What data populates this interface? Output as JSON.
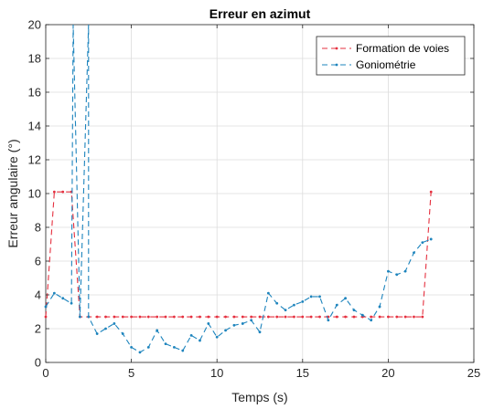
{
  "chart_data": {
    "type": "line",
    "title": "Erreur en azimut",
    "xlabel": "Temps (s)",
    "ylabel": "Erreur angulaire (°)",
    "xlim": [
      0,
      25
    ],
    "ylim": [
      0,
      20
    ],
    "xticks": [
      0,
      5,
      10,
      15,
      20,
      25
    ],
    "yticks": [
      0,
      2,
      4,
      6,
      8,
      10,
      12,
      14,
      16,
      18,
      20
    ],
    "grid": true,
    "legend_position": "top-right",
    "series": [
      {
        "name": "Formation de voies",
        "color": "#e5303f",
        "x": [
          0,
          0.5,
          1.0,
          1.5,
          2.0,
          2.5,
          3.0,
          3.5,
          4.0,
          4.5,
          5.0,
          5.5,
          6.0,
          6.5,
          7.0,
          7.5,
          8.0,
          8.5,
          9.0,
          9.5,
          10.0,
          10.5,
          11.0,
          11.5,
          12.0,
          12.5,
          13.0,
          13.5,
          14.0,
          14.5,
          15.0,
          15.5,
          16.0,
          16.5,
          17.0,
          17.5,
          18.0,
          18.5,
          19.0,
          19.5,
          20.0,
          20.5,
          21.0,
          21.5,
          22.0,
          22.5
        ],
        "y": [
          2.7,
          10.1,
          10.1,
          10.1,
          2.7,
          2.7,
          2.7,
          2.7,
          2.7,
          2.7,
          2.7,
          2.7,
          2.7,
          2.7,
          2.7,
          2.7,
          2.7,
          2.7,
          2.7,
          2.7,
          2.7,
          2.7,
          2.7,
          2.7,
          2.7,
          2.7,
          2.7,
          2.7,
          2.7,
          2.7,
          2.7,
          2.7,
          2.7,
          2.7,
          2.7,
          2.7,
          2.7,
          2.7,
          2.7,
          2.7,
          2.7,
          2.7,
          2.7,
          2.7,
          2.7,
          10.1
        ]
      },
      {
        "name": "Goniométrie",
        "color": "#1d84bd",
        "x": [
          0,
          0.5,
          1.0,
          1.5,
          1.6,
          1.6,
          2.0,
          2.5,
          2.5,
          3.0,
          3.5,
          4.0,
          4.5,
          5.0,
          5.5,
          6.0,
          6.5,
          7.0,
          7.5,
          8.0,
          8.5,
          9.0,
          9.5,
          10.0,
          10.5,
          11.0,
          11.5,
          12.0,
          12.5,
          13.0,
          13.5,
          14.0,
          14.5,
          15.0,
          15.5,
          16.0,
          16.5,
          17.0,
          17.5,
          18.0,
          18.5,
          19.0,
          19.5,
          20.0,
          20.5,
          21.0,
          21.5,
          22.0,
          22.5
        ],
        "y": [
          3.3,
          4.1,
          3.8,
          3.5,
          20,
          20,
          2.7,
          20,
          2.7,
          1.7,
          2.0,
          2.3,
          1.7,
          0.9,
          0.6,
          0.9,
          1.9,
          1.1,
          0.9,
          0.7,
          1.6,
          1.3,
          2.3,
          1.5,
          1.9,
          2.2,
          2.3,
          2.5,
          1.8,
          4.1,
          3.5,
          3.1,
          3.4,
          3.6,
          3.9,
          3.9,
          2.5,
          3.4,
          3.8,
          3.1,
          2.8,
          2.5,
          3.3,
          5.4,
          5.2,
          5.4,
          6.5,
          7.1,
          7.3
        ]
      }
    ]
  }
}
